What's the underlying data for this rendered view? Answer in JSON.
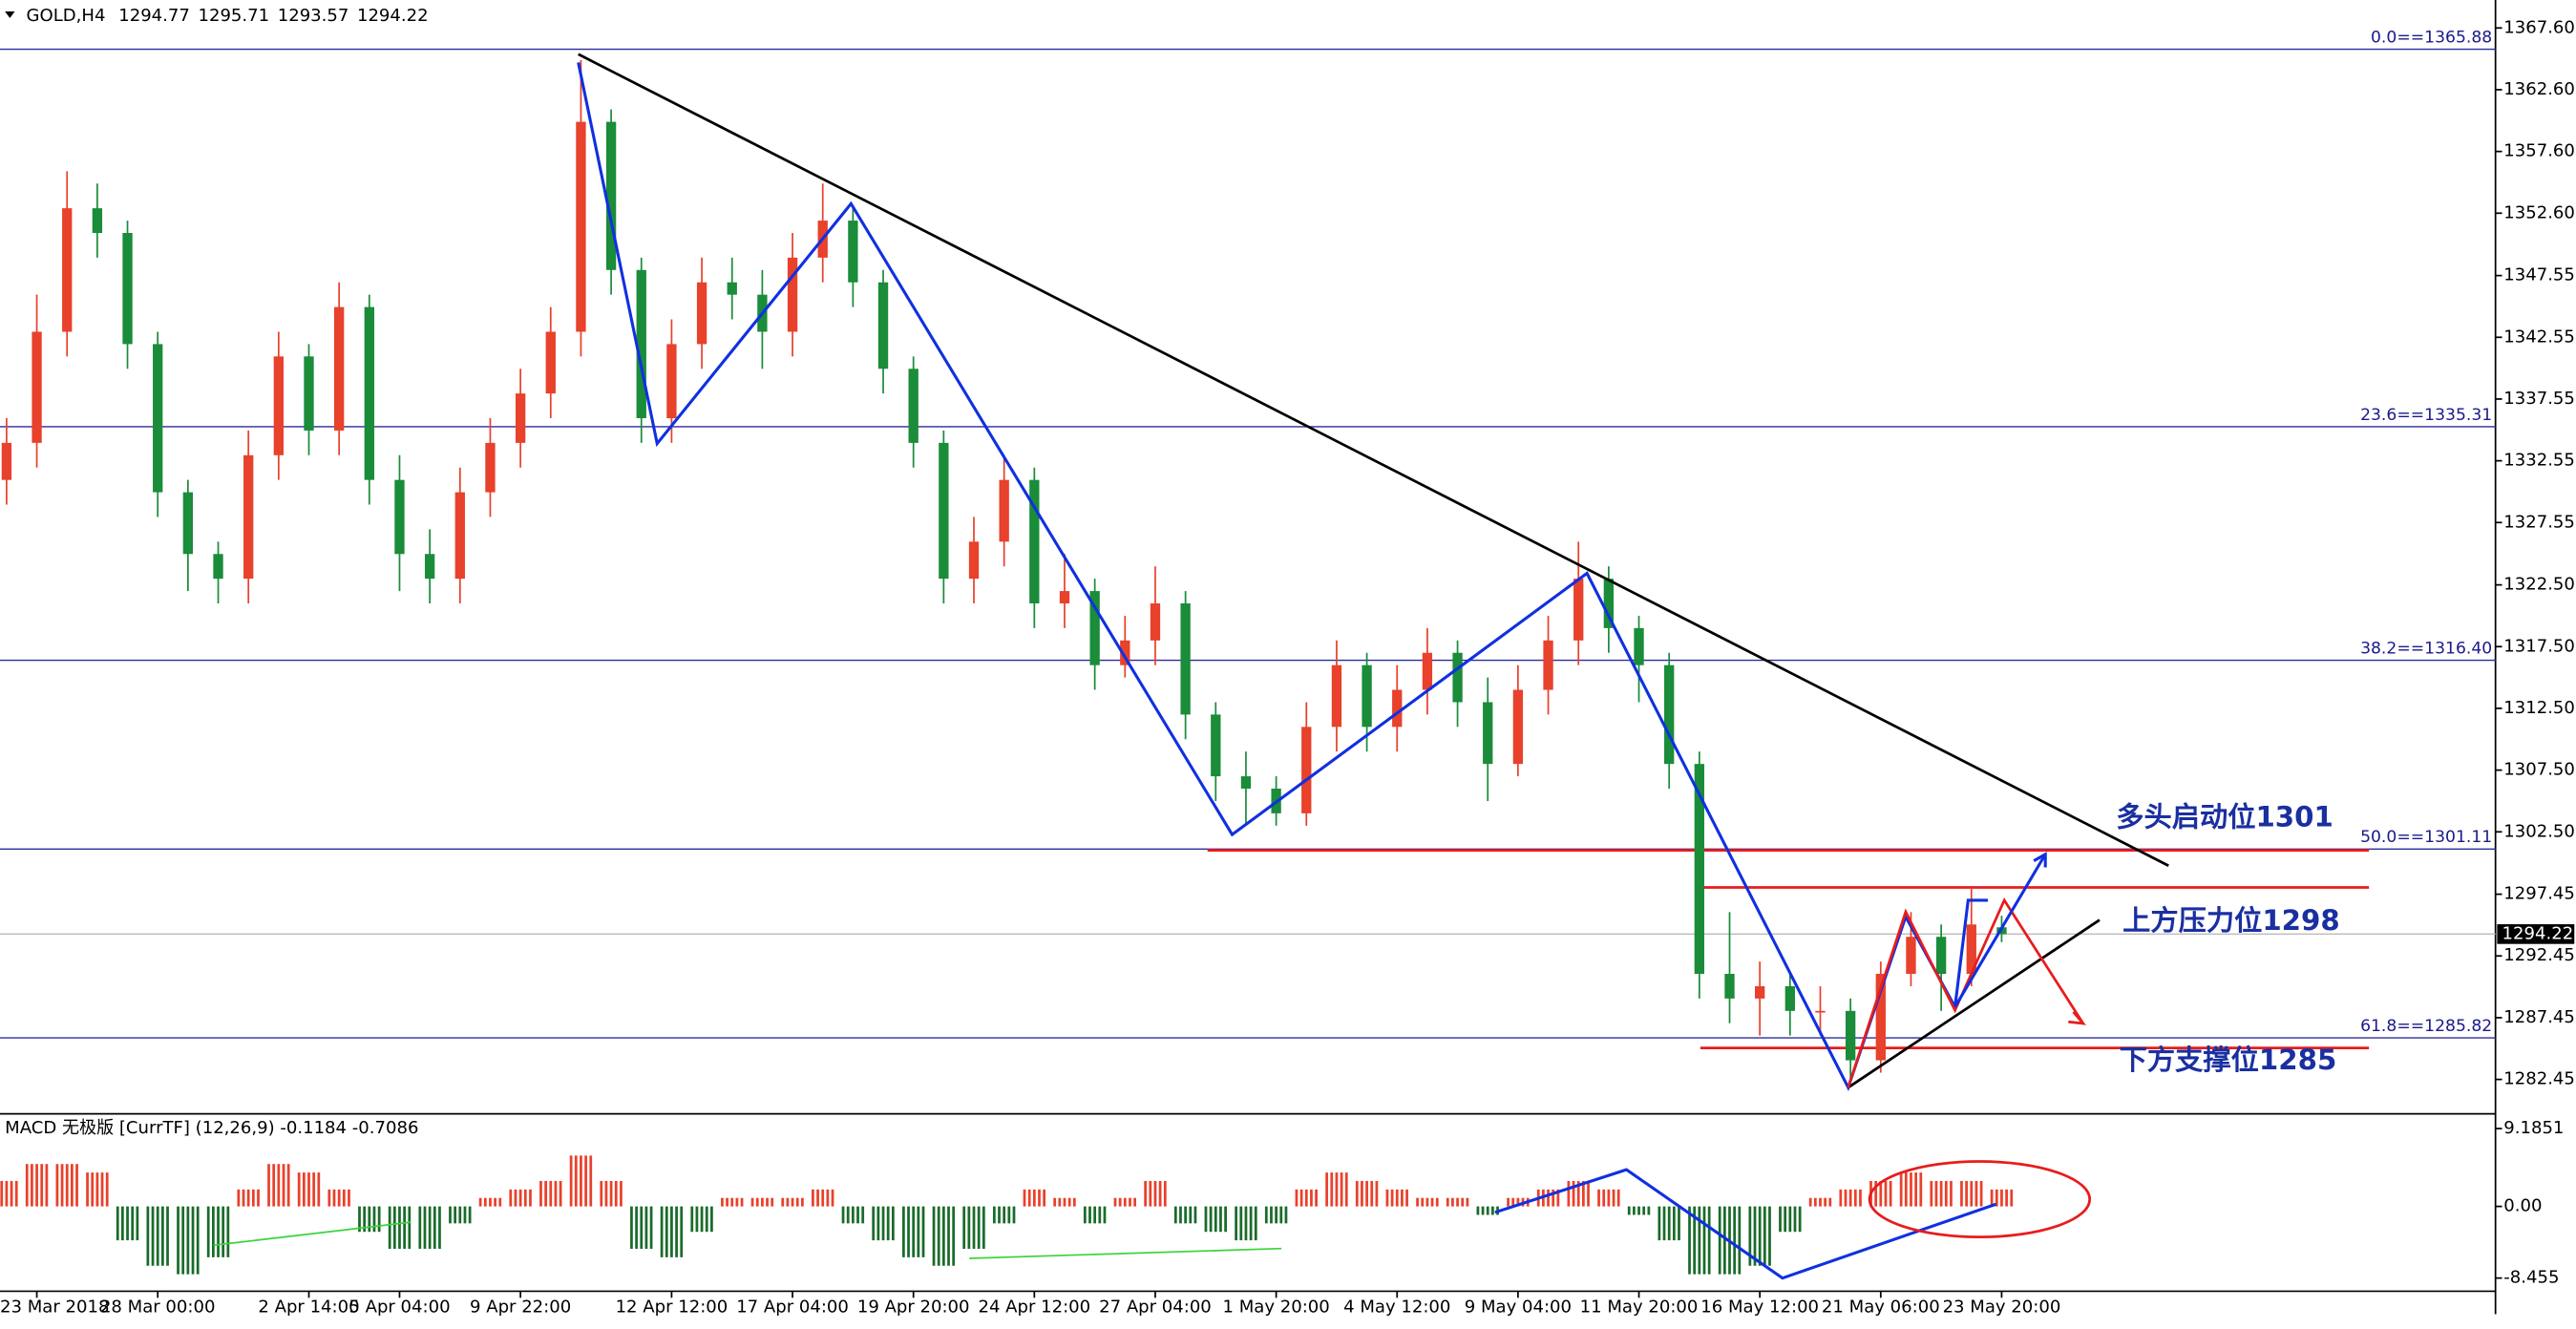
{
  "chart_data": [
    {
      "type": "candlestick",
      "title": "GOLD,H4",
      "categories": [
        null,
        "23 Mar 2018",
        null,
        null,
        null,
        "28 Mar 00:00",
        null,
        null,
        null,
        null,
        "2 Apr 14:00",
        null,
        null,
        "5 Apr 04:00",
        null,
        null,
        null,
        "9 Apr 22:00",
        null,
        null,
        null,
        null,
        "12 Apr 12:00",
        null,
        null,
        null,
        "17 Apr 04:00",
        null,
        null,
        null,
        "19 Apr 20:00",
        null,
        null,
        null,
        "24 Apr 12:00",
        null,
        null,
        null,
        "27 Apr 04:00",
        null,
        null,
        null,
        "1 May 20:00",
        null,
        null,
        null,
        "4 May 12:00",
        null,
        null,
        null,
        "9 May 04:00",
        null,
        null,
        null,
        "11 May 20:00",
        null,
        null,
        null,
        "16 May 12:00",
        null,
        null,
        null,
        "21 May 06:00",
        null,
        null,
        null,
        "23 May 20:00"
      ],
      "open": [
        1331,
        1334,
        1343,
        1353,
        1351,
        1342,
        1330,
        1325,
        1323,
        1333,
        1341,
        1335,
        1345,
        1331,
        1325,
        1323,
        1330,
        1334,
        1338,
        1343,
        1360,
        1348,
        1336,
        1342,
        1347,
        1346,
        1343,
        1349,
        1352,
        1347,
        1340,
        1334,
        1323,
        1326,
        1331,
        1321,
        1322,
        1316,
        1318,
        1321,
        1312,
        1307,
        1306,
        1304,
        1311,
        1316,
        1311,
        1314,
        1317,
        1313,
        1308,
        1314,
        1318,
        1323,
        1319,
        1316,
        1308,
        1291,
        1289,
        1290,
        1288,
        1288,
        1284,
        1291,
        1294,
        1291,
        1294.77
      ],
      "high": [
        1336,
        1346,
        1356,
        1355,
        1352,
        1343,
        1331,
        1326,
        1335,
        1343,
        1342,
        1347,
        1346,
        1333,
        1327,
        1332,
        1336,
        1340,
        1345,
        1365,
        1361,
        1349,
        1344,
        1349,
        1349,
        1348,
        1351,
        1355,
        1353,
        1348,
        1341,
        1335,
        1328,
        1333,
        1332,
        1325,
        1323,
        1320,
        1324,
        1322,
        1313,
        1309,
        1307,
        1313,
        1318,
        1317,
        1316,
        1319,
        1318,
        1315,
        1316,
        1320,
        1326,
        1324,
        1320,
        1317,
        1309,
        1296,
        1292,
        1291,
        1290,
        1289,
        1292,
        1296,
        1295,
        1298,
        1295.71
      ],
      "low": [
        1329,
        1332,
        1341,
        1349,
        1340,
        1328,
        1322,
        1321,
        1321,
        1331,
        1333,
        1333,
        1329,
        1322,
        1321,
        1321,
        1328,
        1332,
        1336,
        1341,
        1346,
        1334,
        1334,
        1340,
        1344,
        1340,
        1341,
        1347,
        1345,
        1338,
        1332,
        1321,
        1321,
        1324,
        1319,
        1319,
        1314,
        1315,
        1316,
        1310,
        1305,
        1303,
        1303,
        1303,
        1309,
        1309,
        1309,
        1312,
        1311,
        1305,
        1307,
        1312,
        1316,
        1317,
        1313,
        1306,
        1289,
        1287,
        1286,
        1286,
        1286,
        1282.5,
        1283,
        1290,
        1288,
        1290,
        1293.57
      ],
      "close": [
        1334,
        1343,
        1353,
        1351,
        1342,
        1330,
        1325,
        1323,
        1333,
        1341,
        1335,
        1345,
        1331,
        1325,
        1323,
        1330,
        1334,
        1338,
        1343,
        1360,
        1348,
        1336,
        1342,
        1347,
        1346,
        1343,
        1349,
        1352,
        1347,
        1340,
        1334,
        1323,
        1326,
        1331,
        1321,
        1322,
        1316,
        1318,
        1321,
        1312,
        1307,
        1306,
        1304,
        1311,
        1316,
        1311,
        1314,
        1317,
        1313,
        1308,
        1314,
        1318,
        1323,
        1319,
        1316,
        1308,
        1291,
        1289,
        1290,
        1288,
        1288,
        1284,
        1291,
        1294,
        1291,
        1295,
        1294.22
      ],
      "up_color": "#e8412c",
      "down_color": "#1a8c3a",
      "ylim": [
        1279.8,
        1369.2
      ],
      "yticks": [
        {
          "value": 1367.6,
          "label": "1367.60"
        },
        {
          "value": 1362.6,
          "label": "1362.60"
        },
        {
          "value": 1357.6,
          "label": "1357.60"
        },
        {
          "value": 1352.6,
          "label": "1352.60"
        },
        {
          "value": 1347.55,
          "label": "1347.55"
        },
        {
          "value": 1342.55,
          "label": "1342.55"
        },
        {
          "value": 1337.55,
          "label": "1337.55"
        },
        {
          "value": 1332.55,
          "label": "1332.55"
        },
        {
          "value": 1327.55,
          "label": "1327.55"
        },
        {
          "value": 1322.5,
          "label": "1322.50"
        },
        {
          "value": 1317.5,
          "label": "1317.50"
        },
        {
          "value": 1312.5,
          "label": "1312.50"
        },
        {
          "value": 1307.5,
          "label": "1307.50"
        },
        {
          "value": 1302.5,
          "label": "1302.50"
        },
        {
          "value": 1297.45,
          "label": "1297.45"
        },
        {
          "value": 1292.45,
          "label": "1292.45"
        },
        {
          "value": 1287.45,
          "label": "1287.45"
        },
        {
          "value": 1282.45,
          "label": "1282.45"
        }
      ],
      "levels": [
        {
          "value": 1365.88,
          "label": "0.0==1365.88"
        },
        {
          "value": 1335.31,
          "label": "23.6==1335.31"
        },
        {
          "value": 1316.4,
          "label": "38.2==1316.40"
        },
        {
          "value": 1301.11,
          "label": "50.0==1301.11"
        },
        {
          "value": 1285.82,
          "label": "61.8==1285.82"
        }
      ],
      "level_color": "#2b2b9a",
      "annotations": [
        {
          "text": "多头启动位1301",
          "value": 1301
        },
        {
          "text": "上方压力位1298",
          "value": 1298
        },
        {
          "text": "下方支撑位1285",
          "value": 1285
        }
      ],
      "annotation_color": "#e81c1c"
    },
    {
      "type": "bar",
      "title": "MACD 无极版 [CurrTF] (12,26,9) -0.1184 -0.7086",
      "values": [
        3,
        5,
        5,
        4,
        -4,
        -7,
        -8,
        -6,
        2,
        5,
        4,
        2,
        -3,
        -5,
        -5,
        -2,
        1,
        2,
        3,
        6,
        3,
        -5,
        -6,
        -3,
        1,
        1,
        1,
        2,
        -2,
        -4,
        -6,
        -7,
        -5,
        -2,
        2,
        1,
        -2,
        1,
        3,
        -2,
        -3,
        -4,
        -2,
        2,
        4,
        3,
        2,
        1,
        1,
        -1,
        1,
        2,
        3,
        2,
        -1,
        -4,
        -8,
        -8,
        -7,
        -3,
        1,
        2,
        3,
        4,
        3,
        3,
        2
      ],
      "up_color": "#e8412c",
      "down_color": "#1a6b2a",
      "ylim": [
        -12.72,
        10.54
      ],
      "yticks": [
        9.1851,
        {
          "value": 0,
          "label": "0.00"
        },
        -8.455
      ]
    }
  ]
}
